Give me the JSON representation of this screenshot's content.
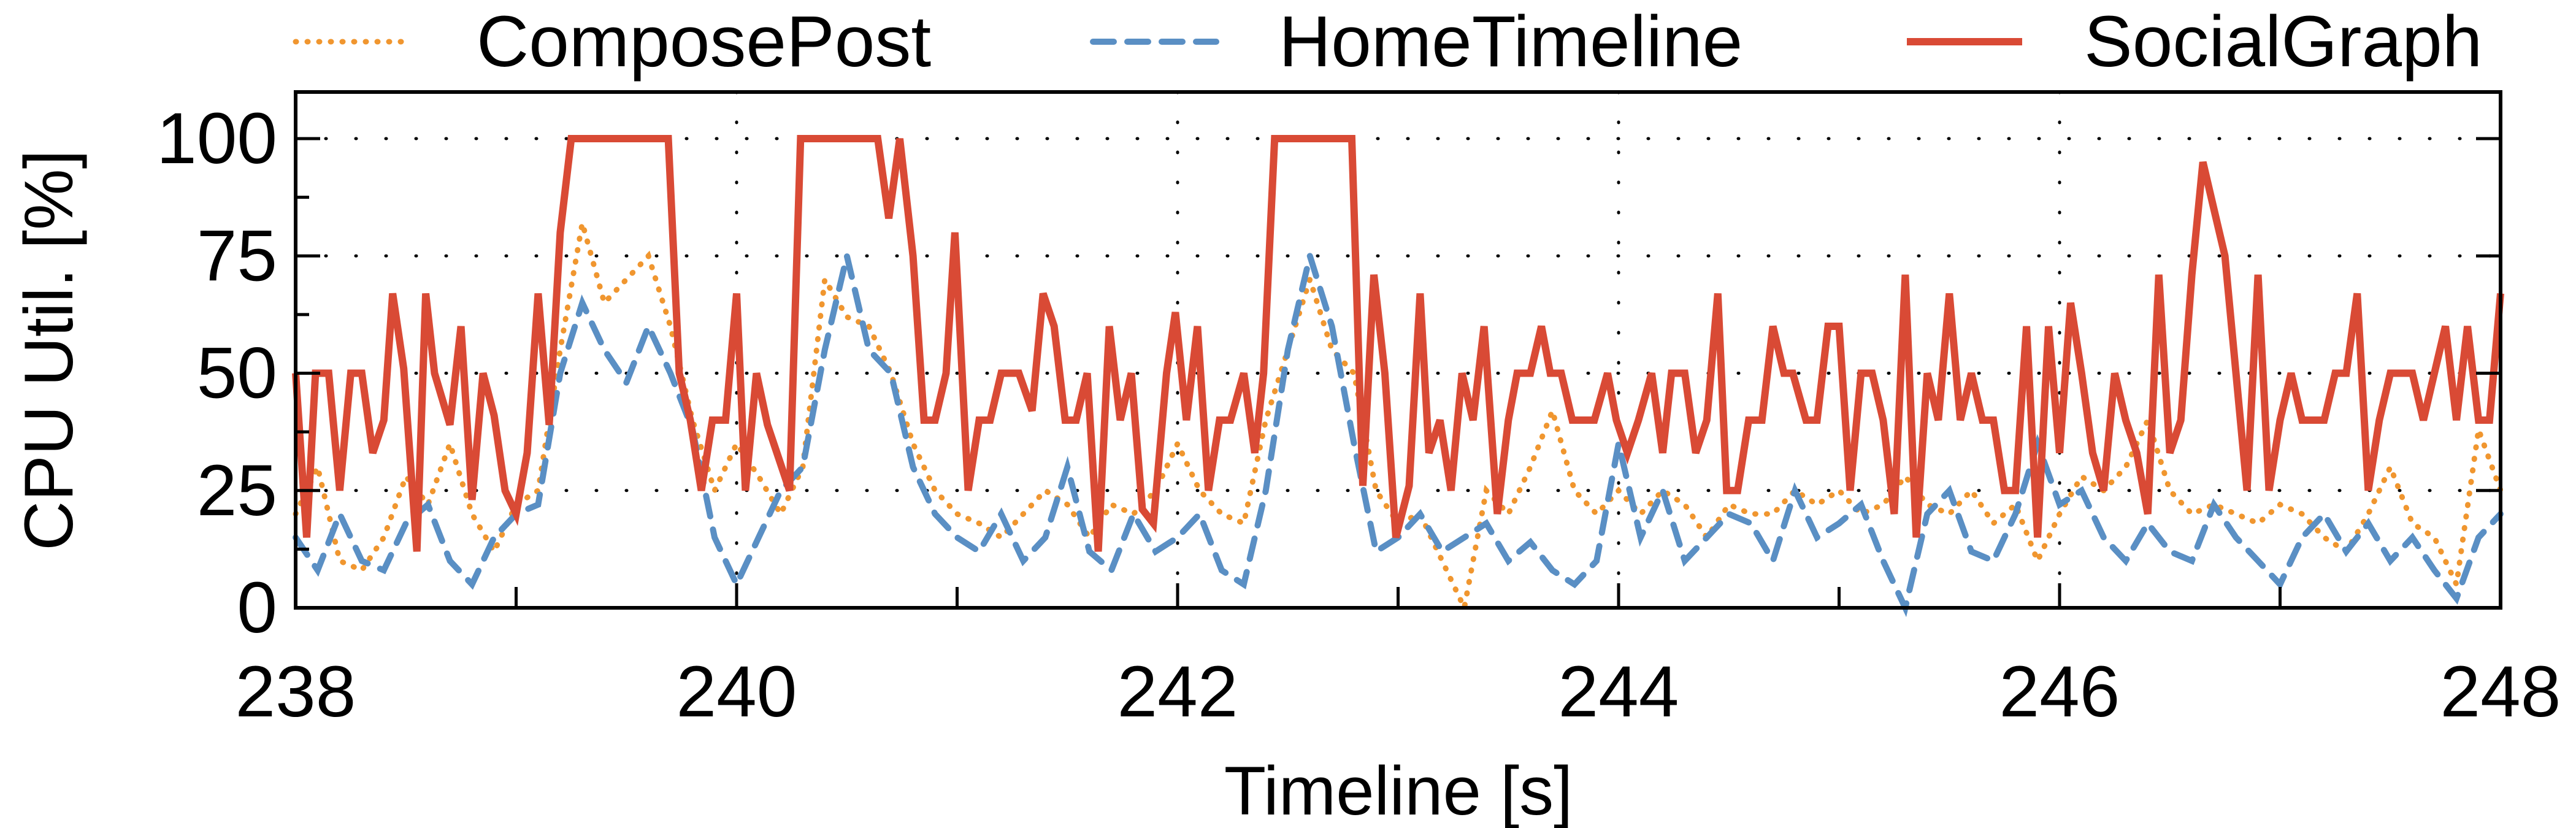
{
  "chart_data": {
    "type": "line",
    "title": "",
    "xlabel": "Timeline [s]",
    "ylabel": "CPU Util. [%]",
    "xlim": [
      238,
      248
    ],
    "ylim": [
      0,
      110
    ],
    "xticks": [
      238,
      240,
      242,
      244,
      246,
      248
    ],
    "yticks": [
      0,
      25,
      50,
      75,
      100
    ],
    "grid": true,
    "legend_position": "top",
    "series": [
      {
        "name": "ComposePost",
        "color": "#f0962f",
        "style": "dotted",
        "x": [
          238.0,
          238.1,
          238.2,
          238.3,
          238.4,
          238.5,
          238.6,
          238.7,
          238.8,
          238.9,
          239.0,
          239.1,
          239.2,
          239.3,
          239.4,
          239.5,
          239.6,
          239.7,
          239.8,
          239.9,
          240.0,
          240.1,
          240.2,
          240.3,
          240.4,
          240.5,
          240.6,
          240.7,
          240.8,
          240.9,
          241.0,
          241.1,
          241.2,
          241.3,
          241.4,
          241.5,
          241.6,
          241.7,
          241.8,
          241.9,
          242.0,
          242.1,
          242.2,
          242.3,
          242.4,
          242.5,
          242.6,
          242.7,
          242.8,
          242.9,
          243.0,
          243.1,
          243.2,
          243.3,
          243.4,
          243.5,
          243.6,
          243.7,
          243.8,
          243.9,
          244.0,
          244.1,
          244.2,
          244.3,
          244.4,
          244.5,
          244.6,
          244.7,
          244.8,
          244.9,
          245.0,
          245.1,
          245.2,
          245.3,
          245.4,
          245.5,
          245.6,
          245.7,
          245.8,
          245.9,
          246.0,
          246.1,
          246.2,
          246.3,
          246.4,
          246.5,
          246.6,
          246.7,
          246.8,
          246.9,
          247.0,
          247.1,
          247.2,
          247.3,
          247.4,
          247.5,
          247.6,
          247.7,
          247.8,
          247.9,
          248.0
        ],
        "y": [
          20,
          30,
          10,
          8,
          15,
          28,
          22,
          35,
          20,
          12,
          22,
          25,
          55,
          82,
          65,
          70,
          75,
          60,
          40,
          25,
          35,
          28,
          20,
          30,
          70,
          62,
          60,
          50,
          35,
          25,
          20,
          18,
          15,
          20,
          25,
          22,
          15,
          22,
          20,
          25,
          35,
          25,
          20,
          18,
          40,
          55,
          70,
          55,
          50,
          25,
          18,
          20,
          10,
          0,
          25,
          20,
          30,
          42,
          25,
          20,
          25,
          20,
          25,
          22,
          15,
          22,
          20,
          20,
          25,
          22,
          25,
          20,
          22,
          28,
          22,
          20,
          25,
          18,
          22,
          10,
          20,
          28,
          25,
          30,
          40,
          25,
          20,
          22,
          20,
          18,
          22,
          20,
          15,
          12,
          20,
          30,
          18,
          15,
          5,
          38,
          25
        ]
      },
      {
        "name": "HomeTimeline",
        "color": "#5a8fc4",
        "style": "dashed",
        "x": [
          238.0,
          238.1,
          238.2,
          238.3,
          238.4,
          238.5,
          238.6,
          238.7,
          238.8,
          238.9,
          239.0,
          239.1,
          239.2,
          239.3,
          239.4,
          239.5,
          239.6,
          239.7,
          239.8,
          239.9,
          240.0,
          240.1,
          240.2,
          240.3,
          240.4,
          240.5,
          240.6,
          240.7,
          240.8,
          240.9,
          241.0,
          241.1,
          241.2,
          241.3,
          241.4,
          241.5,
          241.6,
          241.7,
          241.8,
          241.9,
          242.0,
          242.1,
          242.2,
          242.3,
          242.4,
          242.5,
          242.6,
          242.7,
          242.8,
          242.9,
          243.0,
          243.1,
          243.2,
          243.3,
          243.4,
          243.5,
          243.6,
          243.7,
          243.8,
          243.9,
          244.0,
          244.1,
          244.2,
          244.3,
          244.4,
          244.5,
          244.6,
          244.7,
          244.8,
          244.9,
          245.0,
          245.1,
          245.2,
          245.3,
          245.4,
          245.5,
          245.6,
          245.7,
          245.8,
          245.9,
          246.0,
          246.1,
          246.2,
          246.3,
          246.4,
          246.5,
          246.6,
          246.7,
          246.8,
          246.9,
          247.0,
          247.1,
          247.2,
          247.3,
          247.4,
          247.5,
          247.6,
          247.7,
          247.8,
          247.9,
          248.0
        ],
        "y": [
          15,
          8,
          20,
          10,
          8,
          18,
          22,
          10,
          5,
          15,
          20,
          22,
          50,
          65,
          55,
          48,
          60,
          50,
          38,
          15,
          5,
          15,
          25,
          30,
          55,
          75,
          55,
          50,
          30,
          20,
          15,
          12,
          20,
          10,
          15,
          30,
          12,
          8,
          20,
          12,
          15,
          20,
          8,
          5,
          25,
          55,
          75,
          60,
          35,
          12,
          15,
          20,
          12,
          15,
          18,
          10,
          14,
          8,
          5,
          10,
          35,
          15,
          25,
          10,
          15,
          20,
          18,
          10,
          25,
          15,
          18,
          22,
          10,
          0,
          20,
          25,
          12,
          10,
          20,
          35,
          22,
          25,
          15,
          10,
          18,
          12,
          10,
          22,
          15,
          10,
          5,
          15,
          20,
          12,
          18,
          10,
          15,
          8,
          2,
          15,
          20
        ]
      },
      {
        "name": "SocialGraph",
        "color": "#d94a35",
        "style": "solid",
        "x": [
          238.0,
          238.05,
          238.09,
          238.15,
          238.2,
          238.25,
          238.3,
          238.35,
          238.4,
          238.44,
          238.49,
          238.55,
          238.59,
          238.63,
          238.7,
          238.75,
          238.8,
          238.85,
          238.9,
          238.95,
          239.0,
          239.05,
          239.1,
          239.15,
          239.2,
          239.25,
          239.69,
          239.74,
          239.79,
          239.84,
          239.89,
          239.95,
          240.0,
          240.04,
          240.09,
          240.14,
          240.19,
          240.24,
          240.29,
          240.64,
          240.69,
          240.74,
          240.8,
          240.85,
          240.9,
          240.95,
          240.99,
          241.05,
          241.1,
          241.15,
          241.2,
          241.28,
          241.34,
          241.39,
          241.44,
          241.49,
          241.54,
          241.59,
          241.64,
          241.69,
          241.74,
          241.79,
          241.84,
          241.89,
          241.95,
          241.99,
          242.04,
          242.09,
          242.14,
          242.19,
          242.24,
          242.3,
          242.35,
          242.39,
          242.44,
          242.79,
          242.84,
          242.89,
          242.94,
          242.99,
          243.05,
          243.1,
          243.14,
          243.19,
          243.24,
          243.29,
          243.34,
          243.39,
          243.45,
          243.5,
          243.54,
          243.6,
          243.65,
          243.69,
          243.74,
          243.79,
          243.84,
          243.89,
          243.95,
          243.99,
          244.04,
          244.09,
          244.15,
          244.2,
          244.24,
          244.3,
          244.35,
          244.4,
          244.45,
          244.49,
          244.54,
          244.59,
          244.65,
          244.7,
          244.75,
          244.79,
          244.85,
          244.9,
          244.95,
          245.0,
          245.05,
          245.1,
          245.15,
          245.2,
          245.25,
          245.3,
          245.35,
          245.4,
          245.45,
          245.5,
          245.55,
          245.6,
          245.65,
          245.7,
          245.75,
          245.8,
          245.85,
          245.9,
          245.95,
          246.0,
          246.05,
          246.1,
          246.15,
          246.2,
          246.25,
          246.3,
          246.35,
          246.4,
          246.45,
          246.5,
          246.55,
          246.6,
          246.65,
          246.7,
          246.75,
          246.8,
          246.85,
          246.9,
          246.95,
          247.0,
          247.05,
          247.1,
          247.15,
          247.2,
          247.25,
          247.3,
          247.35,
          247.4,
          247.45,
          247.5,
          247.55,
          247.6,
          247.65,
          247.7,
          247.75,
          247.8,
          247.85,
          247.9,
          247.95,
          248.0
        ],
        "y": [
          50,
          15,
          50,
          50,
          25,
          50,
          50,
          33,
          40,
          67,
          51,
          12,
          67,
          50,
          39,
          60,
          23,
          50,
          41,
          25,
          20,
          33,
          67,
          39,
          80,
          100,
          100,
          50,
          40,
          25,
          40,
          40,
          67,
          25,
          50,
          39,
          32,
          25,
          100,
          100,
          83,
          100,
          75,
          40,
          40,
          50,
          80,
          25,
          40,
          40,
          50,
          50,
          42,
          67,
          60,
          40,
          40,
          50,
          12,
          60,
          40,
          50,
          21,
          18,
          50,
          63,
          40,
          60,
          25,
          40,
          40,
          50,
          33,
          50,
          100,
          100,
          26,
          71,
          50,
          15,
          26,
          67,
          33,
          40,
          25,
          50,
          40,
          60,
          20,
          40,
          50,
          50,
          60,
          50,
          50,
          40,
          40,
          40,
          50,
          40,
          33,
          40,
          50,
          33,
          50,
          50,
          33,
          40,
          67,
          25,
          25,
          40,
          40,
          60,
          50,
          50,
          40,
          40,
          60,
          60,
          25,
          50,
          50,
          40,
          20,
          71,
          15,
          50,
          40,
          67,
          40,
          50,
          40,
          40,
          25,
          25,
          60,
          15,
          60,
          33,
          65,
          50,
          33,
          25,
          50,
          40,
          33,
          20,
          71,
          33,
          40,
          71,
          95,
          85,
          75,
          50,
          25,
          71,
          25,
          40,
          50,
          40,
          40,
          40,
          50,
          50,
          67,
          25,
          40,
          50,
          50,
          50,
          40,
          50,
          60,
          40,
          60,
          40,
          40,
          67
        ]
      }
    ]
  }
}
